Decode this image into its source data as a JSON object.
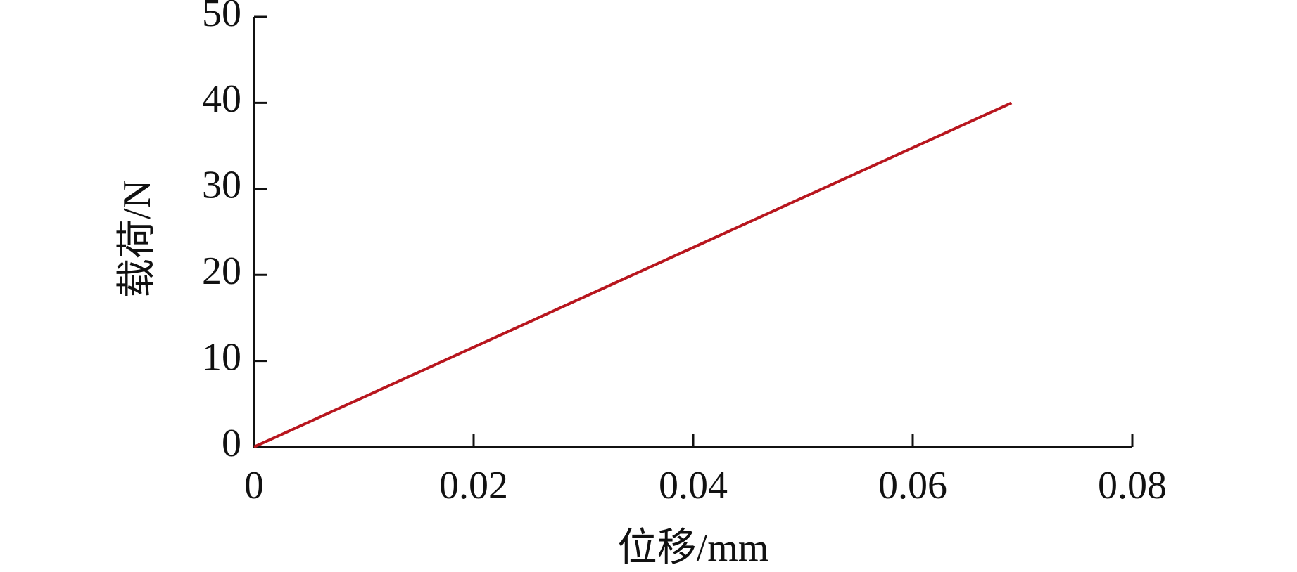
{
  "chart_data": {
    "type": "line",
    "x_label": "位移/mm",
    "y_label": "载荷/N",
    "series": [
      {
        "name": null,
        "color": "#b8161e",
        "x": [
          0,
          0.069
        ],
        "values": [
          0,
          40
        ]
      }
    ],
    "xlim": [
      0,
      0.08
    ],
    "xticks": [
      0,
      0.02,
      0.04,
      0.06,
      0.08
    ],
    "ylim": [
      0,
      50
    ],
    "yticks": [
      0,
      10,
      20,
      30,
      40,
      50
    ],
    "grid": false
  }
}
